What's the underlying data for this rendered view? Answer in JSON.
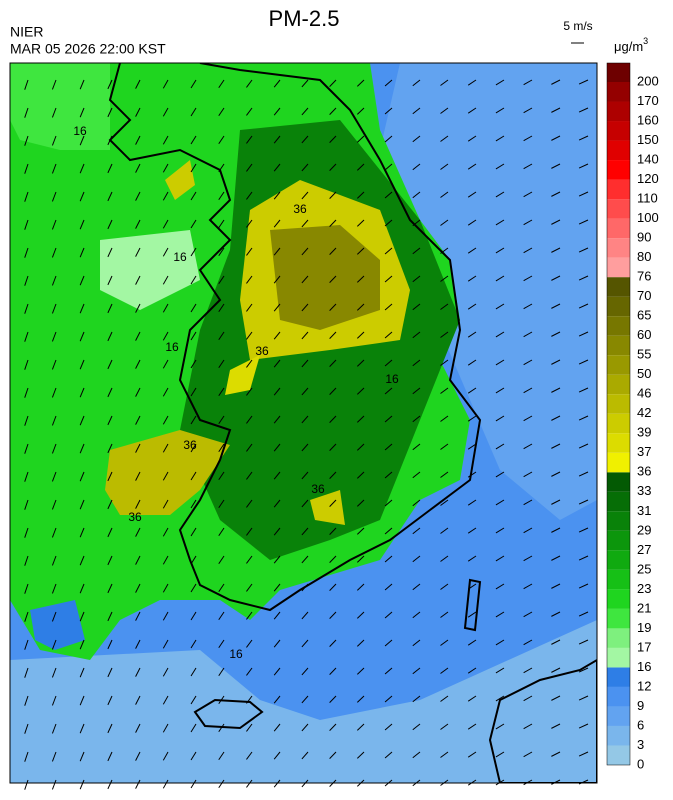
{
  "header": {
    "title": "PM-2.5",
    "agency": "NIER",
    "timestamp": "MAR 05 2026 22:00 KST",
    "wind_reference": "5 m/s",
    "unit": "μg/m",
    "unit_power": "3"
  },
  "map": {
    "contour_labels": [
      "16",
      "16",
      "16",
      "16",
      "36",
      "36",
      "36",
      "16",
      "36",
      "36"
    ]
  },
  "colorbar": {
    "levels": [
      0,
      3,
      6,
      9,
      12,
      16,
      17,
      19,
      21,
      23,
      25,
      27,
      29,
      31,
      33,
      36,
      37,
      39,
      42,
      46,
      50,
      55,
      60,
      65,
      70,
      76,
      80,
      90,
      100,
      110,
      120,
      140,
      150,
      160,
      170,
      200
    ],
    "colors": [
      "#94c8e6",
      "#7ab6ec",
      "#62a3f0",
      "#4b92f0",
      "#2e7ee6",
      "#a3f7a3",
      "#7ef07e",
      "#3fe63f",
      "#1fd51f",
      "#16c016",
      "#10aa10",
      "#0c960c",
      "#098209",
      "#066e06",
      "#035a03",
      "#f0f000",
      "#dcdc00",
      "#cccc00",
      "#bbbb00",
      "#aaaa00",
      "#999900",
      "#888800",
      "#777700",
      "#666600",
      "#555500",
      "#ff9e9e",
      "#ff8484",
      "#ff6868",
      "#ff4c4c",
      "#ff2e2e",
      "#ff0000",
      "#e00000",
      "#c60000",
      "#ad0000",
      "#940000",
      "#6e0000"
    ]
  }
}
